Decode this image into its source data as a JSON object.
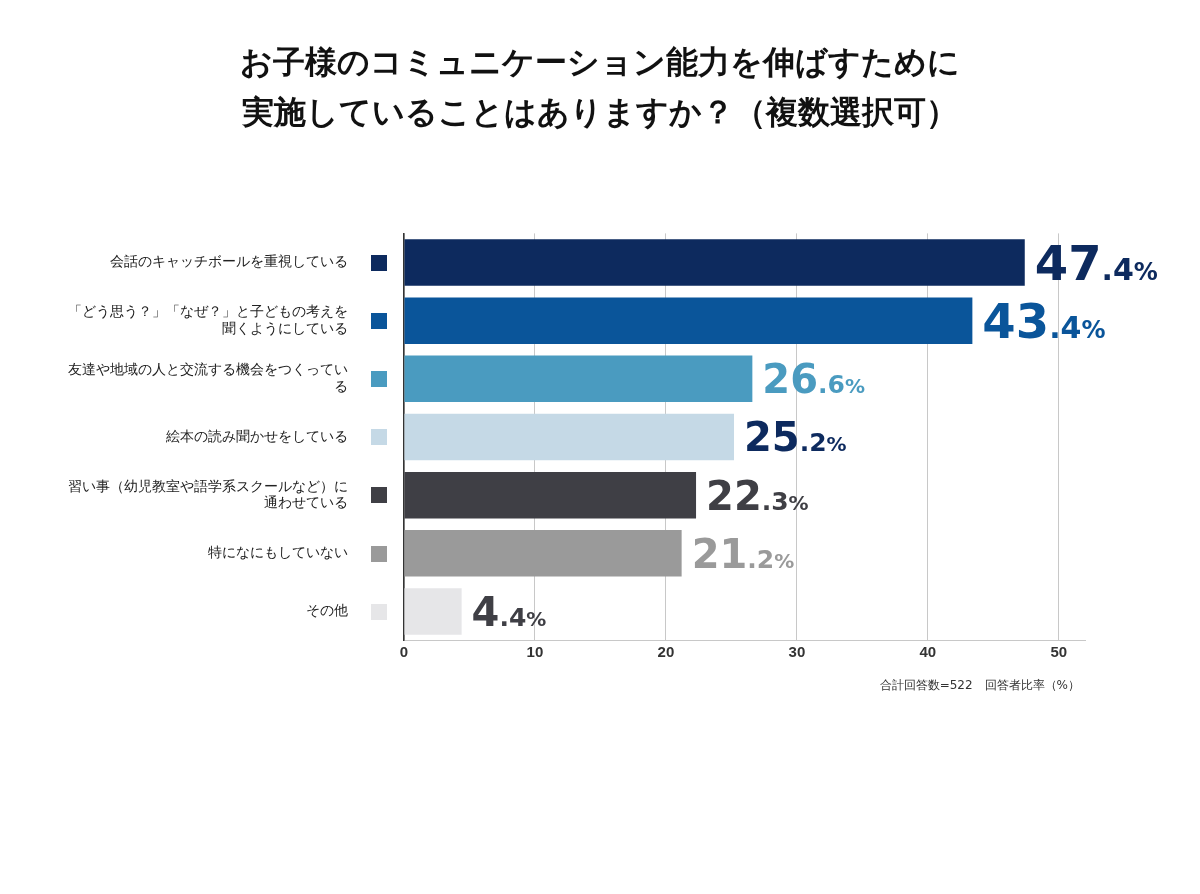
{
  "chart_data": {
    "type": "bar",
    "orientation": "horizontal",
    "title": "お子様のコミュニケーション能力を伸ばすために実施していることはありますか？（複数選択可）",
    "categories": [
      "会話のキャッチボールを重視している",
      "「どう思う？」「なぜ？」と子どもの考えを聞くようにしている",
      "友達や地域の人と交流する機会をつくっている",
      "絵本の読み聞かせをしている",
      "習い事（幼児教室や語学系スクールなど）に通わせている",
      "特になにもしていない",
      "その他"
    ],
    "values": [
      47.4,
      43.4,
      26.6,
      25.2,
      22.3,
      21.2,
      4.4
    ],
    "colors": [
      "#0d2a5e",
      "#0a559a",
      "#4a9bc0",
      "#c5d9e6",
      "#3f3f45",
      "#9a9a9a",
      "#e6e6e8"
    ],
    "value_labels": [
      "47.4%",
      "43.4%",
      "26.6%",
      "25.2%",
      "22.3%",
      "21.2%",
      "4.4%"
    ],
    "xlim": [
      0,
      52
    ],
    "xticks": [
      0,
      10,
      20,
      30,
      40,
      50
    ],
    "grid": "x",
    "annotations": [
      "合計回答数=522　回答者比率（%）"
    ]
  }
}
